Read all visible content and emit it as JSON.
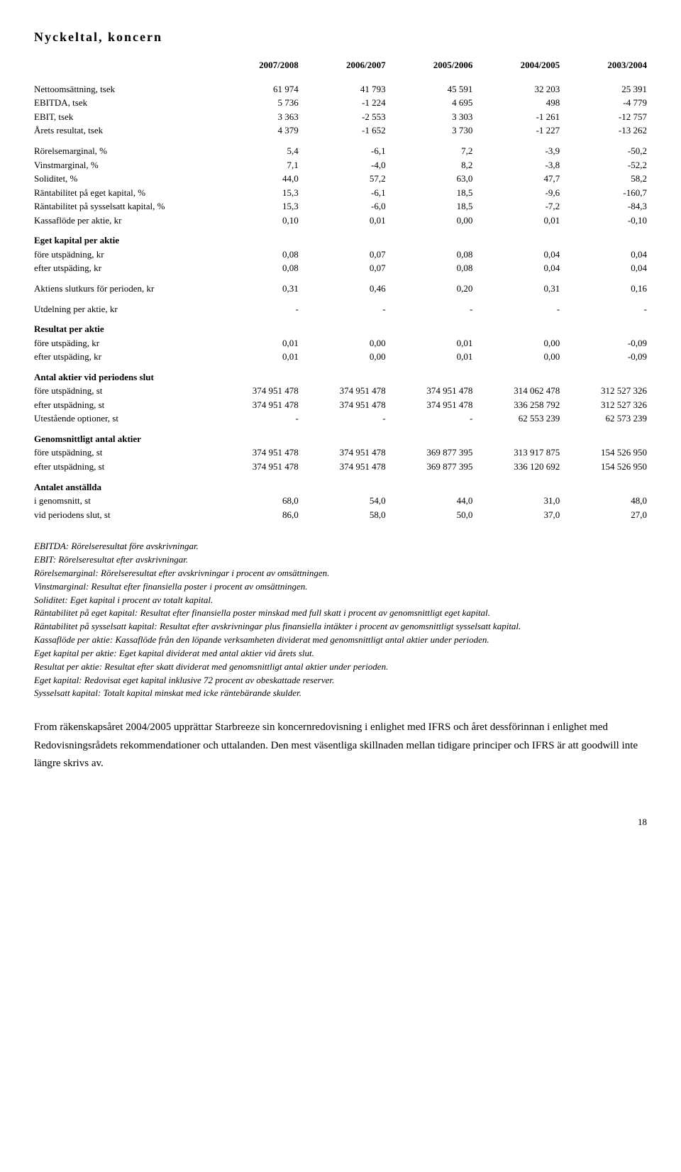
{
  "title": "Nyckeltal, koncern",
  "year_headers": [
    "2007/2008",
    "2006/2007",
    "2005/2006",
    "2004/2005",
    "2003/2004"
  ],
  "rows": [
    {
      "label": "Nettoomsättning, tsek",
      "v": [
        "61 974",
        "41 793",
        "45 591",
        "32 203",
        "25 391"
      ]
    },
    {
      "label": "EBITDA, tsek",
      "v": [
        "5 736",
        "-1 224",
        "4 695",
        "498",
        "-4 779"
      ]
    },
    {
      "label": "EBIT, tsek",
      "v": [
        "3 363",
        "-2 553",
        "3 303",
        "-1 261",
        "-12 757"
      ]
    },
    {
      "label": "Årets resultat, tsek",
      "v": [
        "4 379",
        "-1 652",
        "3 730",
        "-1 227",
        "-13 262"
      ]
    }
  ],
  "rows2": [
    {
      "label": "Rörelsemarginal, %",
      "v": [
        "5,4",
        "-6,1",
        "7,2",
        "-3,9",
        "-50,2"
      ]
    },
    {
      "label": "Vinstmarginal, %",
      "v": [
        "7,1",
        "-4,0",
        "8,2",
        "-3,8",
        "-52,2"
      ]
    },
    {
      "label": "Soliditet, %",
      "v": [
        "44,0",
        "57,2",
        "63,0",
        "47,7",
        "58,2"
      ]
    },
    {
      "label": "Räntabilitet på eget kapital, %",
      "v": [
        "15,3",
        "-6,1",
        "18,5",
        "-9,6",
        "-160,7"
      ]
    },
    {
      "label": "Räntabilitet på sysselsatt kapital, %",
      "v": [
        "15,3",
        "-6,0",
        "18,5",
        "-7,2",
        "-84,3"
      ]
    },
    {
      "label": "Kassaflöde per aktie, kr",
      "v": [
        "0,10",
        "0,01",
        "0,00",
        "0,01",
        "-0,10"
      ]
    }
  ],
  "eget_kapital": {
    "head": "Eget kapital per aktie",
    "rows": [
      {
        "label": "före utspädning, kr",
        "v": [
          "0,08",
          "0,07",
          "0,08",
          "0,04",
          "0,04"
        ]
      },
      {
        "label": "efter utspäding, kr",
        "v": [
          "0,08",
          "0,07",
          "0,08",
          "0,04",
          "0,04"
        ]
      }
    ]
  },
  "slutkurs": {
    "label": "Aktiens slutkurs för perioden, kr",
    "v": [
      "0,31",
      "0,46",
      "0,20",
      "0,31",
      "0,16"
    ]
  },
  "utdelning": {
    "label": "Utdelning per aktie, kr",
    "v": [
      "-",
      "-",
      "-",
      "-",
      "-"
    ]
  },
  "resultat_per_aktie": {
    "head": "Resultat per aktie",
    "rows": [
      {
        "label": "före utspäding, kr",
        "v": [
          "0,01",
          "0,00",
          "0,01",
          "0,00",
          "-0,09"
        ]
      },
      {
        "label": "efter utspäding, kr",
        "v": [
          "0,01",
          "0,00",
          "0,01",
          "0,00",
          "-0,09"
        ]
      }
    ]
  },
  "antal_aktier": {
    "head": "Antal aktier vid periodens slut",
    "rows": [
      {
        "label": "före utspädning, st",
        "v": [
          "374 951 478",
          "374 951 478",
          "374 951 478",
          "314 062 478",
          "312 527 326"
        ]
      },
      {
        "label": "efter utspädning, st",
        "v": [
          "374 951 478",
          "374 951 478",
          "374 951 478",
          "336 258 792",
          "312 527 326"
        ]
      },
      {
        "label": "Utestående optioner, st",
        "v": [
          "-",
          "-",
          "-",
          "62 553 239",
          "62 573 239"
        ]
      }
    ]
  },
  "genomsnitt": {
    "head": "Genomsnittligt antal aktier",
    "rows": [
      {
        "label": "före utspädning, st",
        "v": [
          "374 951 478",
          "374 951 478",
          "369 877 395",
          "313 917 875",
          "154 526 950"
        ]
      },
      {
        "label": "efter utspädning, st",
        "v": [
          "374 951 478",
          "374 951 478",
          "369 877 395",
          "336 120 692",
          "154 526 950"
        ]
      }
    ]
  },
  "anstallda": {
    "head": "Antalet anställda",
    "rows": [
      {
        "label": "i genomsnitt, st",
        "v": [
          "68,0",
          "54,0",
          "44,0",
          "31,0",
          "48,0"
        ]
      },
      {
        "label": "vid periodens slut, st",
        "v": [
          "86,0",
          "58,0",
          "50,0",
          "37,0",
          "27,0"
        ]
      }
    ]
  },
  "defs": [
    {
      "term": "EBITDA:",
      "text": " Rörelseresultat före avskrivningar."
    },
    {
      "term": "EBIT:",
      "text": " Rörelseresultat efter avskrivningar."
    },
    {
      "term": "Rörelsemarginal",
      "text": ": Rörelseresultat efter avskrivningar i procent av omsättningen."
    },
    {
      "term": "Vinstmarginal",
      "text": ": Resultat efter finansiella poster i procent av omsättningen."
    },
    {
      "term": "Soliditet",
      "text": ": Eget kapital i procent av totalt kapital."
    },
    {
      "term": "Räntabilitet på eget kapital",
      "text": ": Resultat efter finansiella poster minskad med full skatt i procent av genomsnittligt eget kapital."
    },
    {
      "term": "Räntabilitet på sysselsatt kapital",
      "text": ": Resultat efter avskrivningar plus finansiella intäkter i procent av genomsnittligt sysselsatt kapital."
    },
    {
      "term": "Kassaflöde per aktie:",
      "text": " Kassaflöde från den löpande verksamheten dividerat med genomsnittligt antal aktier under perioden."
    },
    {
      "term": "Eget kapital per aktie:",
      "text": " Eget kapital dividerat med antal aktier vid årets slut."
    },
    {
      "term": "Resultat per aktie",
      "text": ": Resultat efter skatt dividerat med genomsnittligt antal aktier under perioden."
    },
    {
      "term": "Eget kapital:",
      "text": " Redovisat eget kapital inklusive 72 procent av obeskattade reserver."
    },
    {
      "term": "Sysselsatt kapital:",
      "text": " Totalt kapital minskat med icke räntebärande skulder."
    }
  ],
  "closing": "From räkenskapsåret 2004/2005 upprättar Starbreeze sin koncernredovisning i enlighet med IFRS och året dessförinnan i enlighet med Redovisningsrådets rekommendationer och uttalanden. Den mest väsentliga skillnaden mellan tidigare principer och IFRS är att goodwill inte längre skrivs av.",
  "page_number": "18",
  "colors": {
    "text": "#000000",
    "bg": "#ffffff"
  }
}
